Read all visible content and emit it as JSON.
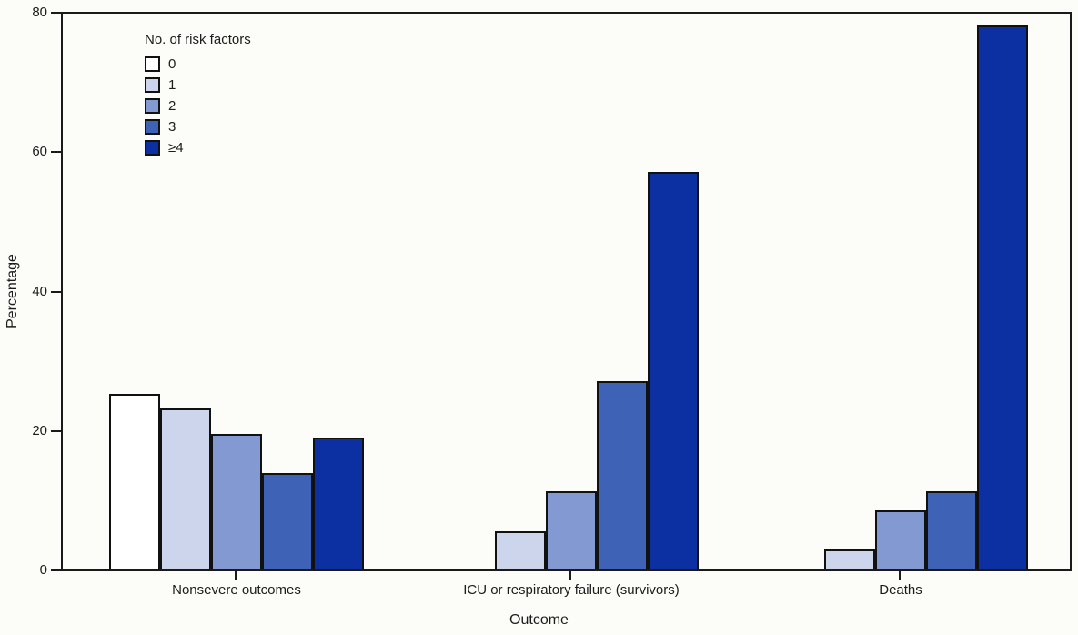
{
  "figure": {
    "background": "#fcfcf8",
    "frame_color": "#1a1a1a"
  },
  "chart_data": {
    "type": "bar",
    "title": "",
    "xlabel": "Outcome",
    "ylabel": "Percentage",
    "ylim": [
      0,
      80
    ],
    "yticks": [
      0,
      20,
      40,
      60,
      80
    ],
    "grid": false,
    "categories": [
      "Nonsevere outcomes",
      "ICU or respiratory failure (survivors)",
      "Deaths"
    ],
    "legend": {
      "title": "No. of risk factors",
      "position": "top-left"
    },
    "series": [
      {
        "name": "0",
        "color": "#ffffff",
        "values": [
          25.0,
          0,
          0
        ]
      },
      {
        "name": "1",
        "color": "#ccd5ec",
        "values": [
          22.9,
          5.2,
          2.6
        ]
      },
      {
        "name": "2",
        "color": "#8299d2",
        "values": [
          19.3,
          11.0,
          8.3
        ]
      },
      {
        "name": "3",
        "color": "#3e63b6",
        "values": [
          13.6,
          26.8,
          11.0
        ]
      },
      {
        "name": "≥4",
        "color": "#0c2fa2",
        "values": [
          18.7,
          57.0,
          78.0
        ]
      }
    ]
  }
}
